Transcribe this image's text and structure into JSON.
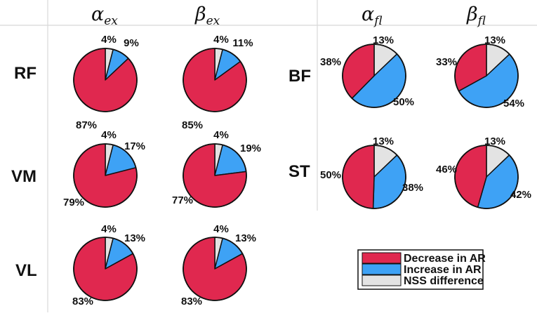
{
  "chart_data": {
    "type": "pie",
    "colors": {
      "decrease": "#e0284f",
      "increase": "#3ea2f5",
      "nss": "#e3e3e3"
    },
    "legend": {
      "position": "bottom-right",
      "entries": [
        {
          "key": "decrease",
          "label": "Decrease in AR"
        },
        {
          "key": "increase",
          "label": "Increase in AR"
        },
        {
          "key": "nss",
          "label": "NSS difference"
        }
      ]
    },
    "column_headers": {
      "alpha_ex": {
        "base": "α",
        "sub": "ex"
      },
      "beta_ex": {
        "base": "β",
        "sub": "ex"
      },
      "alpha_fl": {
        "base": "α",
        "sub": "fl"
      },
      "beta_fl": {
        "base": "β",
        "sub": "fl"
      }
    },
    "row_labels": {
      "rf": "RF",
      "vm": "VM",
      "vl": "VL",
      "bf": "BF",
      "st": "ST"
    },
    "pies": [
      {
        "id": "rf-alpha-ex",
        "muscle": "RF",
        "parameter": "alpha_ex",
        "slices": [
          {
            "key": "nss",
            "value": 4,
            "label": "4%"
          },
          {
            "key": "increase",
            "value": 9,
            "label": "9%"
          },
          {
            "key": "decrease",
            "value": 87,
            "label": "87%"
          }
        ]
      },
      {
        "id": "rf-beta-ex",
        "muscle": "RF",
        "parameter": "beta_ex",
        "slices": [
          {
            "key": "nss",
            "value": 4,
            "label": "4%"
          },
          {
            "key": "increase",
            "value": 11,
            "label": "11%"
          },
          {
            "key": "decrease",
            "value": 85,
            "label": "85%"
          }
        ]
      },
      {
        "id": "vm-alpha-ex",
        "muscle": "VM",
        "parameter": "alpha_ex",
        "slices": [
          {
            "key": "nss",
            "value": 4,
            "label": "4%"
          },
          {
            "key": "increase",
            "value": 17,
            "label": "17%"
          },
          {
            "key": "decrease",
            "value": 79,
            "label": "79%"
          }
        ]
      },
      {
        "id": "vm-beta-ex",
        "muscle": "VM",
        "parameter": "beta_ex",
        "slices": [
          {
            "key": "nss",
            "value": 4,
            "label": "4%"
          },
          {
            "key": "increase",
            "value": 19,
            "label": "19%"
          },
          {
            "key": "decrease",
            "value": 77,
            "label": "77%"
          }
        ]
      },
      {
        "id": "vl-alpha-ex",
        "muscle": "VL",
        "parameter": "alpha_ex",
        "slices": [
          {
            "key": "nss",
            "value": 4,
            "label": "4%"
          },
          {
            "key": "increase",
            "value": 13,
            "label": "13%"
          },
          {
            "key": "decrease",
            "value": 83,
            "label": "83%"
          }
        ]
      },
      {
        "id": "vl-beta-ex",
        "muscle": "VL",
        "parameter": "beta_ex",
        "slices": [
          {
            "key": "nss",
            "value": 4,
            "label": "4%"
          },
          {
            "key": "increase",
            "value": 13,
            "label": "13%"
          },
          {
            "key": "decrease",
            "value": 83,
            "label": "83%"
          }
        ]
      },
      {
        "id": "bf-alpha-fl",
        "muscle": "BF",
        "parameter": "alpha_fl",
        "slices": [
          {
            "key": "nss",
            "value": 13,
            "label": "13%"
          },
          {
            "key": "increase",
            "value": 50,
            "label": "50%"
          },
          {
            "key": "decrease",
            "value": 38,
            "label": "38%"
          }
        ]
      },
      {
        "id": "bf-beta-fl",
        "muscle": "BF",
        "parameter": "beta_fl",
        "slices": [
          {
            "key": "nss",
            "value": 13,
            "label": "13%"
          },
          {
            "key": "increase",
            "value": 54,
            "label": "54%"
          },
          {
            "key": "decrease",
            "value": 33,
            "label": "33%"
          }
        ]
      },
      {
        "id": "st-alpha-fl",
        "muscle": "ST",
        "parameter": "alpha_fl",
        "slices": [
          {
            "key": "nss",
            "value": 13,
            "label": "13%"
          },
          {
            "key": "increase",
            "value": 38,
            "label": "38%"
          },
          {
            "key": "decrease",
            "value": 50,
            "label": "50%"
          }
        ]
      },
      {
        "id": "st-beta-fl",
        "muscle": "ST",
        "parameter": "beta_fl",
        "slices": [
          {
            "key": "nss",
            "value": 13,
            "label": "13%"
          },
          {
            "key": "increase",
            "value": 42,
            "label": "42%"
          },
          {
            "key": "decrease",
            "value": 46,
            "label": "46%"
          }
        ]
      }
    ]
  }
}
